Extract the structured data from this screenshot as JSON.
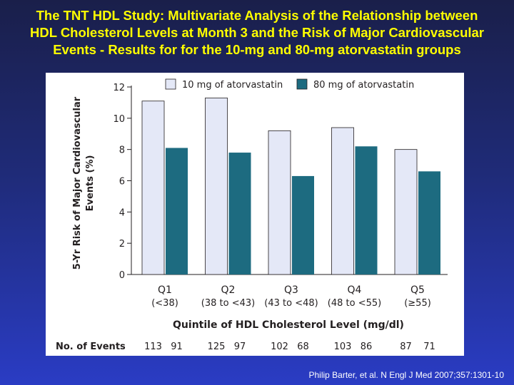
{
  "slide": {
    "title_lines": [
      "The TNT HDL Study: Multivariate Analysis of the Relationship between",
      "HDL Cholesterol Levels at Month 3 and the Risk of Major Cardiovascular",
      "Events - Results for for the 10-mg and 80-mg atorvastatin groups"
    ],
    "citation": "Philip Barter, et al. N Engl J Med 2007;357:1301-10"
  },
  "colors": {
    "series_10mg": "#e4e8f7",
    "series_80mg": "#1d6b80",
    "title_text": "#ffff00",
    "axis": "#231f20"
  },
  "chart_data": {
    "type": "bar",
    "categories": [
      {
        "label": "Q1",
        "sublabel": "(<38)"
      },
      {
        "label": "Q2",
        "sublabel": "(38 to <43)"
      },
      {
        "label": "Q3",
        "sublabel": "(43 to <48)"
      },
      {
        "label": "Q4",
        "sublabel": "(48 to <55)"
      },
      {
        "label": "Q5",
        "sublabel": "(≥55)"
      }
    ],
    "series": [
      {
        "name": "10 mg of atorvastatin",
        "values": [
          11.1,
          11.3,
          9.2,
          9.4,
          8.0
        ],
        "events": [
          "113",
          "125",
          "102",
          "103",
          "87"
        ]
      },
      {
        "name": "80 mg of atorvastatin",
        "values": [
          8.1,
          7.8,
          6.3,
          8.2,
          6.6
        ],
        "events": [
          "91",
          "97",
          "68",
          "86",
          "71"
        ]
      }
    ],
    "xlabel": "Quintile of HDL Cholesterol Level (mg/dl)",
    "ylabel_lines": [
      "5-Yr Risk of Major Cardiovascular",
      "Events (%)"
    ],
    "yticks": [
      0,
      2,
      4,
      6,
      8,
      10,
      12
    ],
    "ylim": [
      0,
      12
    ],
    "events_label": "No. of Events",
    "legend_position": "top",
    "grid": false
  }
}
